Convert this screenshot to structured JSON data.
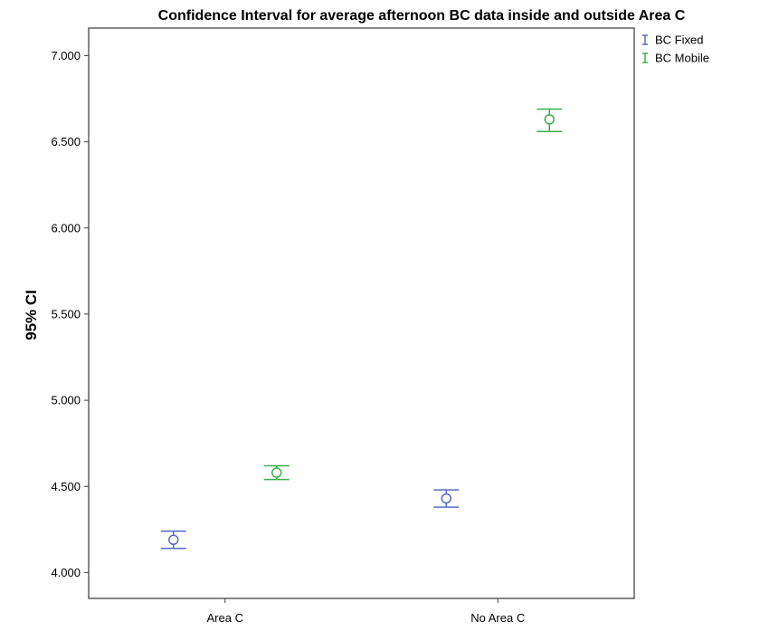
{
  "chart_data": {
    "type": "errorbar",
    "title": "Confidence Interval for average afternoon BC data inside and outside Area C",
    "xlabel": "",
    "ylabel": "95% CI",
    "categories": [
      "Area C",
      "No Area C"
    ],
    "ylim": [
      3.85,
      7.16
    ],
    "yticks": [
      4.0,
      4.5,
      5.0,
      5.5,
      6.0,
      6.5,
      7.0
    ],
    "ytick_labels": [
      "4.000",
      "4.500",
      "5.000",
      "5.500",
      "6.000",
      "6.500",
      "7.000"
    ],
    "grid": false,
    "legend_position": "top-right outside",
    "series": [
      {
        "name": "BC Fixed",
        "color": "#5b6abf",
        "points": [
          {
            "category": "Area C",
            "mean": 4.19,
            "lower": 4.14,
            "upper": 4.24
          },
          {
            "category": "No Area C",
            "mean": 4.43,
            "lower": 4.38,
            "upper": 4.48
          }
        ]
      },
      {
        "name": "BC Mobile",
        "color": "#3daf4c",
        "points": [
          {
            "category": "Area C",
            "mean": 4.58,
            "lower": 4.54,
            "upper": 4.62
          },
          {
            "category": "No Area C",
            "mean": 6.63,
            "lower": 6.56,
            "upper": 6.69
          }
        ]
      }
    ]
  }
}
